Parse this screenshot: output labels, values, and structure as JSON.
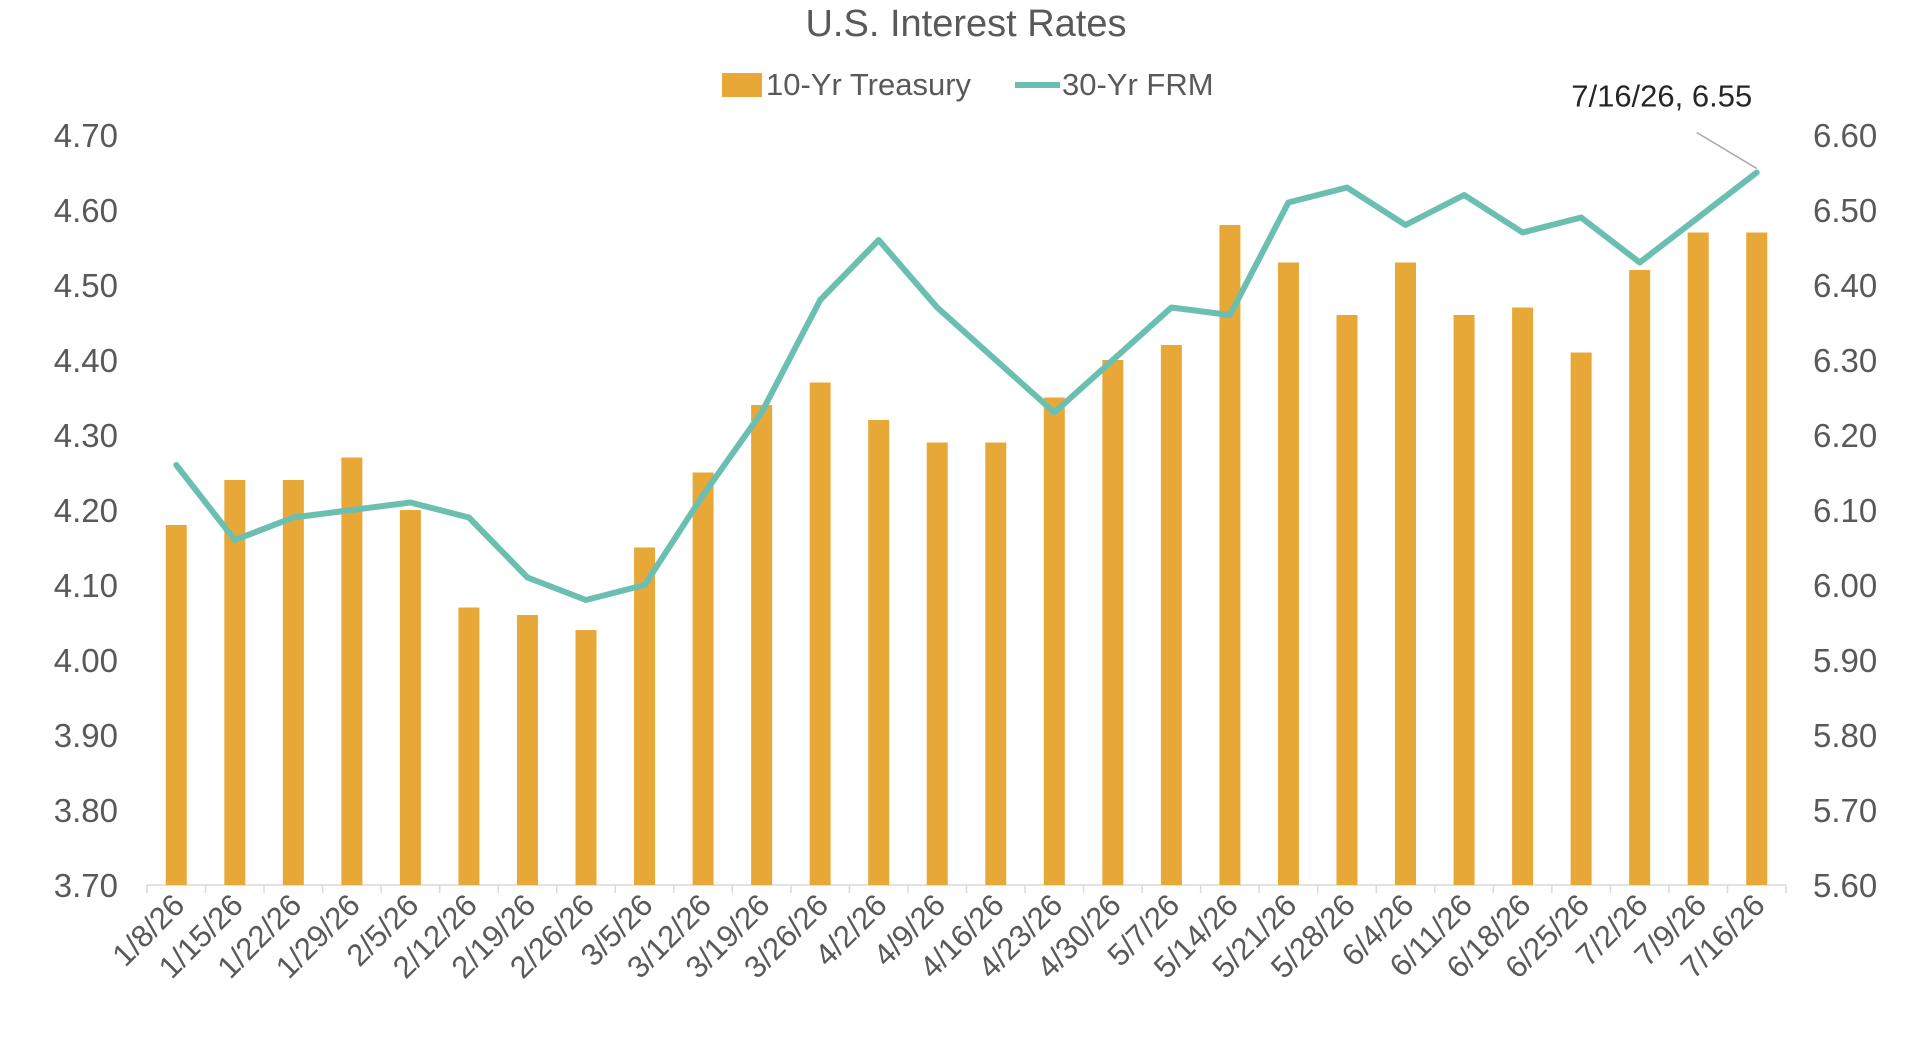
{
  "chart_data": {
    "type": "bar",
    "title": "U.S. Interest Rates",
    "categories": [
      "1/8/26",
      "1/15/26",
      "1/22/26",
      "1/29/26",
      "2/5/26",
      "2/12/26",
      "2/19/26",
      "2/26/26",
      "3/5/26",
      "3/12/26",
      "3/19/26",
      "3/26/26",
      "4/2/26",
      "4/9/26",
      "4/16/26",
      "4/23/26",
      "4/30/26",
      "5/7/26",
      "5/14/26",
      "5/21/26",
      "5/28/26",
      "6/4/26",
      "6/11/26",
      "6/18/26",
      "6/25/26",
      "7/2/26",
      "7/9/26",
      "7/16/26"
    ],
    "series": [
      {
        "name": "10-Yr Treasury",
        "type": "bar",
        "axis": "left",
        "color": "#E8A838",
        "values": [
          4.18,
          4.24,
          4.24,
          4.27,
          4.2,
          4.07,
          4.06,
          4.04,
          4.15,
          4.25,
          4.34,
          4.37,
          4.32,
          4.29,
          4.29,
          4.35,
          4.4,
          4.42,
          4.58,
          4.53,
          4.46,
          4.53,
          4.46,
          4.47,
          4.41,
          4.52,
          4.57,
          4.57
        ]
      },
      {
        "name": "30-Yr FRM",
        "type": "line",
        "axis": "right",
        "color": "#6BBFB1",
        "values": [
          6.16,
          6.06,
          6.09,
          6.1,
          6.11,
          6.09,
          6.01,
          5.98,
          6.0,
          6.12,
          6.23,
          6.38,
          6.46,
          6.37,
          6.3,
          6.23,
          6.3,
          6.37,
          6.36,
          6.51,
          6.53,
          6.48,
          6.52,
          6.47,
          6.49,
          6.43,
          6.49,
          6.55
        ]
      }
    ],
    "y_left": {
      "lim": [
        3.7,
        4.7
      ],
      "ticks": [
        "3.70",
        "3.80",
        "3.90",
        "4.00",
        "4.10",
        "4.20",
        "4.30",
        "4.40",
        "4.50",
        "4.60",
        "4.70"
      ]
    },
    "y_right": {
      "lim": [
        5.6,
        6.6
      ],
      "ticks": [
        "5.60",
        "5.70",
        "5.80",
        "5.90",
        "6.00",
        "6.10",
        "6.20",
        "6.30",
        "6.40",
        "6.50",
        "6.60"
      ]
    },
    "legend": {
      "placement": "top-center"
    },
    "grid": false,
    "annotation": {
      "text": "7/16/26, 6.55",
      "category": "7/16/26",
      "series": "30-Yr FRM",
      "value": 6.55
    }
  }
}
